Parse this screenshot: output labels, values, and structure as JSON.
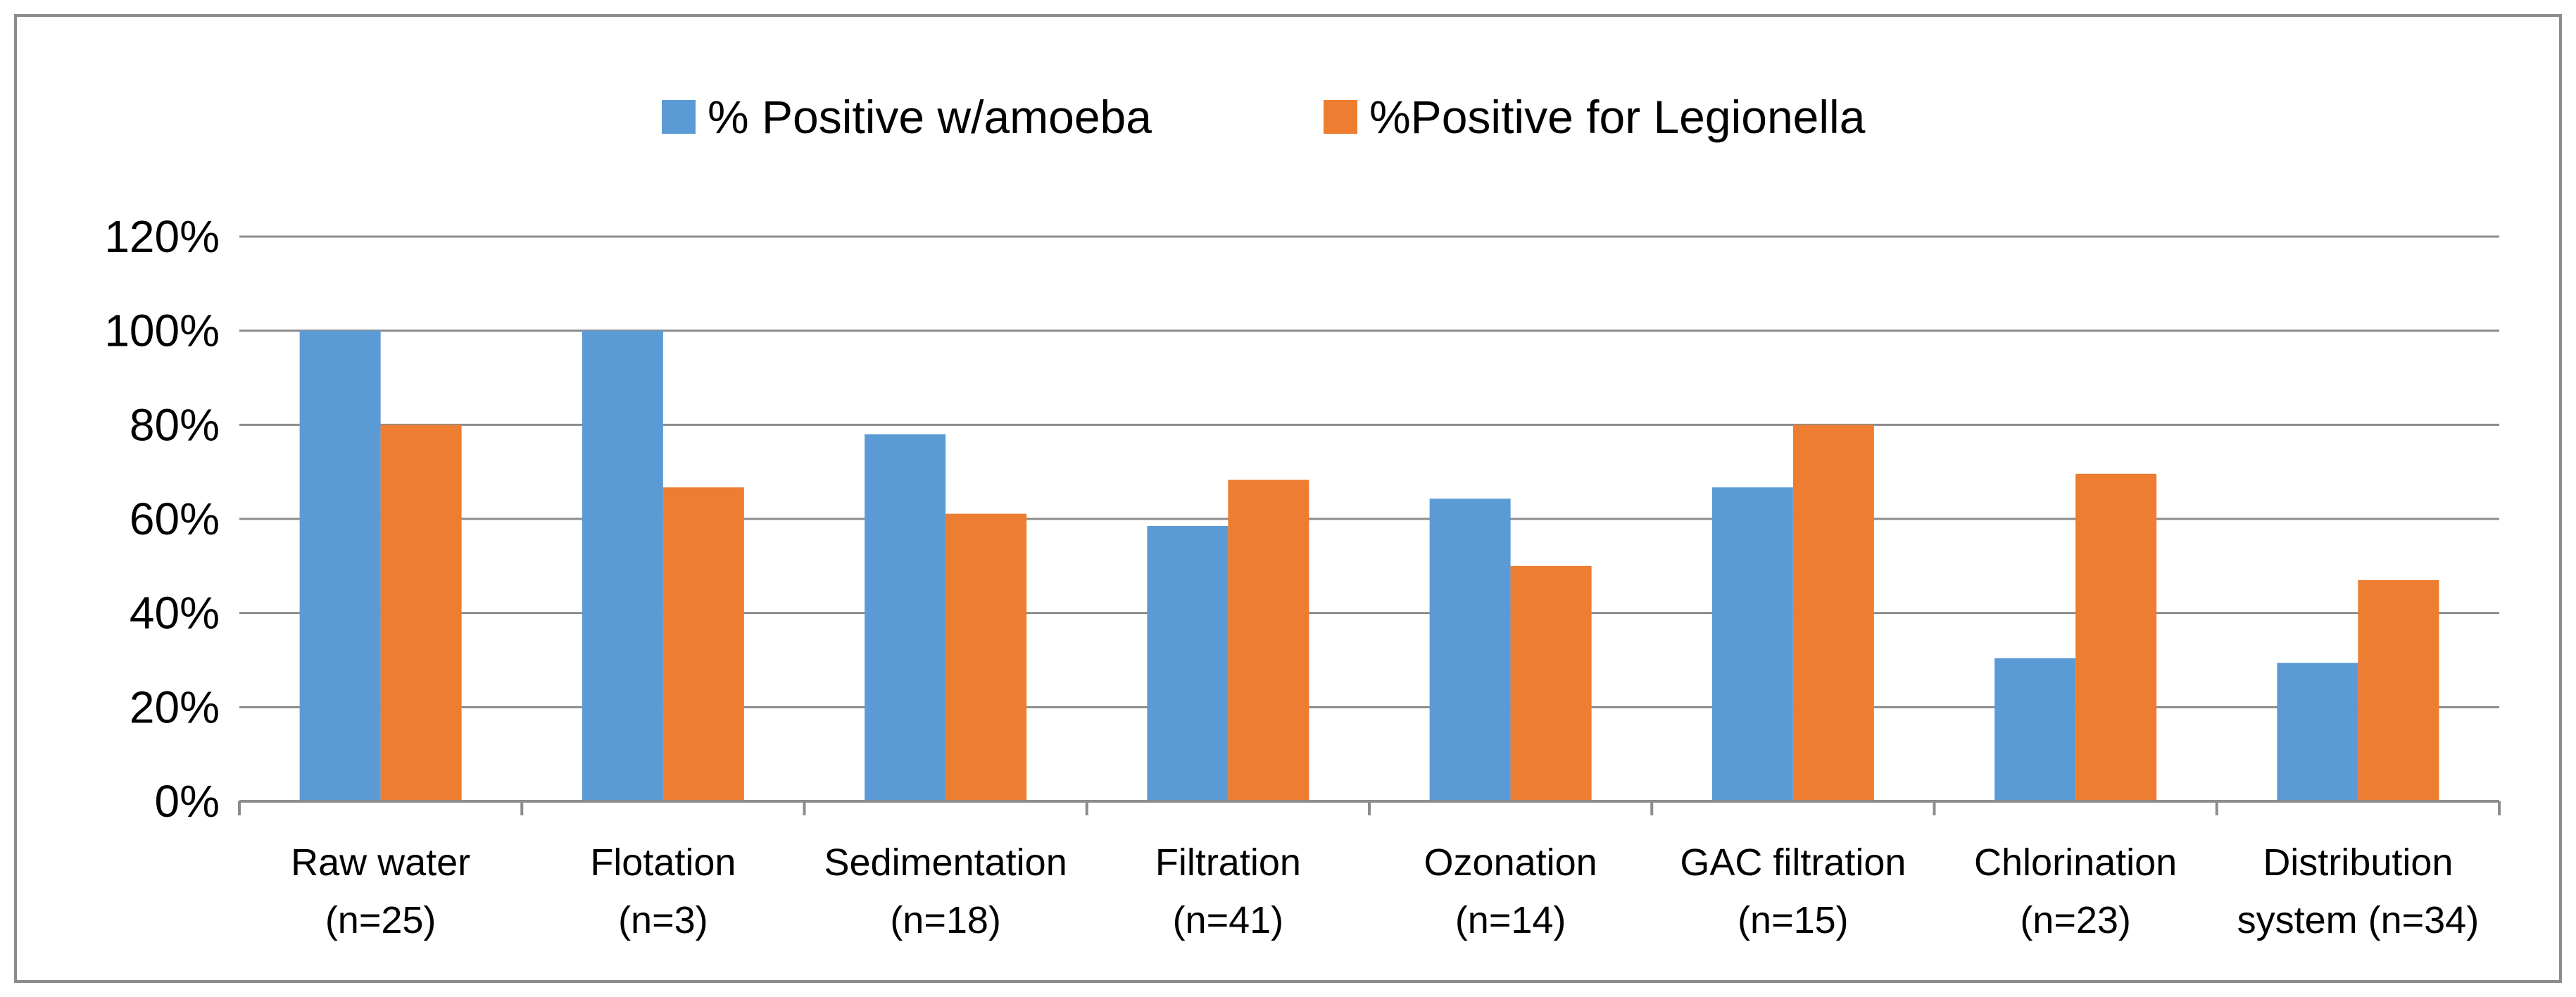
{
  "chart_data": {
    "type": "bar",
    "title": "",
    "xlabel": "",
    "ylabel": "",
    "ylim": [
      0,
      1.2
    ],
    "yticks": [
      0,
      0.2,
      0.4,
      0.6,
      0.8,
      1.0,
      1.2
    ],
    "ytick_labels": [
      "0%",
      "20%",
      "40%",
      "60%",
      "80%",
      "100%",
      "120%"
    ],
    "grid": true,
    "legend_position": "top-center",
    "categories": [
      {
        "line1": "Raw water",
        "line2": "(n=25)"
      },
      {
        "line1": "Flotation",
        "line2": "(n=3)"
      },
      {
        "line1": "Sedimentation",
        "line2": "(n=18)"
      },
      {
        "line1": "Filtration",
        "line2": "(n=41)"
      },
      {
        "line1": "Ozonation",
        "line2": "(n=14)"
      },
      {
        "line1": "GAC filtration",
        "line2": "(n=15)"
      },
      {
        "line1": "Chlorination",
        "line2": "(n=23)"
      },
      {
        "line1": "Distribution",
        "line2": "system (n=34)"
      }
    ],
    "series": [
      {
        "name": "% Positive w/amoeba",
        "color": "#5B9BD5",
        "values": [
          1.0,
          1.0,
          0.78,
          0.585,
          0.643,
          0.667,
          0.304,
          0.294
        ]
      },
      {
        "name": "%Positive for Legionella",
        "color": "#ED7D31",
        "values": [
          0.8,
          0.667,
          0.611,
          0.683,
          0.5,
          0.8,
          0.696,
          0.47
        ]
      }
    ]
  }
}
